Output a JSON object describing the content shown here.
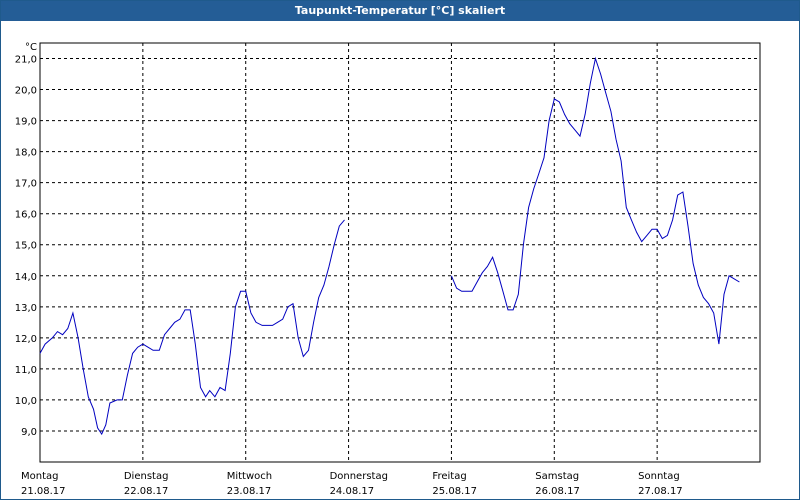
{
  "window": {
    "title": "Taupunkt-Temperatur [°C] skaliert"
  },
  "chart_data": {
    "type": "line",
    "title": "Taupunkt-Temperatur [°C] skaliert",
    "ylabel": "°C",
    "xlabel": "",
    "ylim": [
      8.0,
      21.5
    ],
    "xlim": [
      0,
      7
    ],
    "grid": true,
    "line_color": "#0000c0",
    "y_ticks": [
      "9,0",
      "10,0",
      "11,0",
      "12,0",
      "13,0",
      "14,0",
      "15,0",
      "16,0",
      "17,0",
      "18,0",
      "19,0",
      "20,0",
      "21,0"
    ],
    "y_tick_values": [
      9,
      10,
      11,
      12,
      13,
      14,
      15,
      16,
      17,
      18,
      19,
      20,
      21
    ],
    "x_ticks": [
      {
        "day": "Montag",
        "date": "21.08.17"
      },
      {
        "day": "Dienstag",
        "date": "22.08.17"
      },
      {
        "day": "Mittwoch",
        "date": "23.08.17"
      },
      {
        "day": "Donnerstag",
        "date": "24.08.17"
      },
      {
        "day": "Freitag",
        "date": "25.08.17"
      },
      {
        "day": "Samstag",
        "date": "26.08.17"
      },
      {
        "day": "Sonntag",
        "date": "27.08.17"
      }
    ],
    "series": [
      {
        "segments": [
          [
            [
              0,
              11.5
            ],
            [
              0.05,
              11.8
            ],
            [
              0.12,
              12.0
            ],
            [
              0.17,
              12.2
            ],
            [
              0.22,
              12.1
            ],
            [
              0.27,
              12.3
            ],
            [
              0.32,
              12.8
            ],
            [
              0.37,
              12.0
            ],
            [
              0.42,
              11.0
            ],
            [
              0.47,
              10.1
            ],
            [
              0.52,
              9.7
            ],
            [
              0.56,
              9.1
            ],
            [
              0.6,
              8.9
            ],
            [
              0.64,
              9.2
            ],
            [
              0.68,
              9.9
            ],
            [
              0.75,
              10.0
            ],
            [
              0.8,
              10.0
            ],
            [
              0.85,
              10.8
            ],
            [
              0.9,
              11.5
            ],
            [
              0.95,
              11.7
            ],
            [
              1.0,
              11.8
            ],
            [
              1.05,
              11.7
            ],
            [
              1.1,
              11.6
            ],
            [
              1.16,
              11.6
            ],
            [
              1.21,
              12.1
            ],
            [
              1.26,
              12.3
            ],
            [
              1.31,
              12.5
            ],
            [
              1.36,
              12.6
            ],
            [
              1.41,
              12.9
            ],
            [
              1.46,
              12.9
            ],
            [
              1.51,
              11.8
            ],
            [
              1.56,
              10.4
            ],
            [
              1.61,
              10.1
            ],
            [
              1.65,
              10.3
            ],
            [
              1.7,
              10.1
            ],
            [
              1.75,
              10.4
            ],
            [
              1.8,
              10.3
            ],
            [
              1.85,
              11.5
            ],
            [
              1.9,
              13.0
            ],
            [
              1.95,
              13.5
            ],
            [
              2.0,
              13.5
            ],
            [
              2.05,
              12.8
            ],
            [
              2.1,
              12.5
            ],
            [
              2.16,
              12.4
            ],
            [
              2.21,
              12.4
            ],
            [
              2.26,
              12.4
            ],
            [
              2.31,
              12.5
            ],
            [
              2.36,
              12.6
            ],
            [
              2.41,
              13.0
            ],
            [
              2.46,
              13.1
            ],
            [
              2.51,
              12.0
            ],
            [
              2.56,
              11.4
            ],
            [
              2.61,
              11.6
            ],
            [
              2.66,
              12.5
            ],
            [
              2.71,
              13.3
            ],
            [
              2.76,
              13.7
            ],
            [
              2.81,
              14.3
            ],
            [
              2.86,
              15.0
            ],
            [
              2.91,
              15.6
            ],
            [
              2.96,
              15.8
            ]
          ],
          [
            [
              4.0,
              14.0
            ],
            [
              4.05,
              13.6
            ],
            [
              4.1,
              13.5
            ],
            [
              4.15,
              13.5
            ],
            [
              4.2,
              13.5
            ],
            [
              4.25,
              13.8
            ],
            [
              4.3,
              14.1
            ],
            [
              4.35,
              14.3
            ],
            [
              4.4,
              14.6
            ],
            [
              4.45,
              14.1
            ],
            [
              4.5,
              13.5
            ],
            [
              4.55,
              12.9
            ],
            [
              4.6,
              12.9
            ],
            [
              4.65,
              13.4
            ],
            [
              4.7,
              15.0
            ],
            [
              4.75,
              16.2
            ],
            [
              4.8,
              16.8
            ],
            [
              4.85,
              17.3
            ],
            [
              4.9,
              17.8
            ],
            [
              4.95,
              19.0
            ],
            [
              5.0,
              19.7
            ],
            [
              5.05,
              19.6
            ],
            [
              5.1,
              19.2
            ],
            [
              5.15,
              18.9
            ],
            [
              5.2,
              18.7
            ],
            [
              5.25,
              18.5
            ],
            [
              5.3,
              19.2
            ],
            [
              5.35,
              20.2
            ],
            [
              5.4,
              21.0
            ],
            [
              5.45,
              20.5
            ],
            [
              5.5,
              19.9
            ],
            [
              5.55,
              19.3
            ],
            [
              5.6,
              18.4
            ],
            [
              5.65,
              17.7
            ],
            [
              5.7,
              16.2
            ],
            [
              5.75,
              15.8
            ],
            [
              5.8,
              15.4
            ],
            [
              5.85,
              15.1
            ],
            [
              5.9,
              15.3
            ],
            [
              5.95,
              15.5
            ],
            [
              6.0,
              15.5
            ],
            [
              6.05,
              15.2
            ],
            [
              6.1,
              15.3
            ],
            [
              6.15,
              15.8
            ],
            [
              6.2,
              16.6
            ],
            [
              6.25,
              16.7
            ],
            [
              6.3,
              15.6
            ],
            [
              6.35,
              14.4
            ],
            [
              6.4,
              13.7
            ],
            [
              6.45,
              13.3
            ],
            [
              6.5,
              13.1
            ],
            [
              6.55,
              12.8
            ],
            [
              6.6,
              11.8
            ],
            [
              6.65,
              13.4
            ],
            [
              6.7,
              14.0
            ],
            [
              6.75,
              13.9
            ],
            [
              6.8,
              13.8
            ]
          ]
        ]
      }
    ]
  }
}
